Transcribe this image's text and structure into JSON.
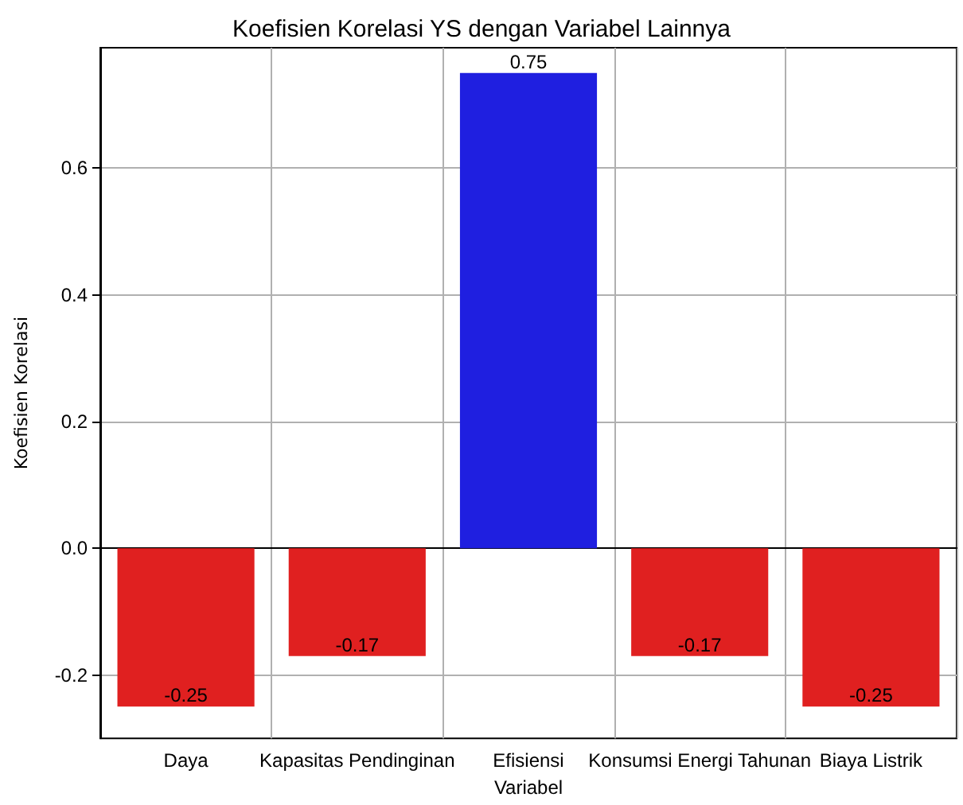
{
  "chart_data": {
    "type": "bar",
    "title": "Koefisien Korelasi YS dengan Variabel Lainnya",
    "xlabel": "Variabel",
    "ylabel": "Koefisien Korelasi",
    "categories": [
      "Daya",
      "Kapasitas Pendinginan",
      "Efisiensi",
      "Konsumsi Energi Tahunan",
      "Biaya Listrik"
    ],
    "values": [
      -0.25,
      -0.17,
      0.75,
      -0.17,
      -0.25
    ],
    "colors": [
      "#e02020",
      "#e02020",
      "#1f1fe0",
      "#e02020",
      "#e02020"
    ],
    "ylim": [
      -0.3,
      0.79
    ],
    "yticks": [
      -0.2,
      {
        "value": 0,
        "label": "0.0"
      },
      0.2,
      0.4,
      0.6
    ],
    "grid": true,
    "data_labels": true
  }
}
